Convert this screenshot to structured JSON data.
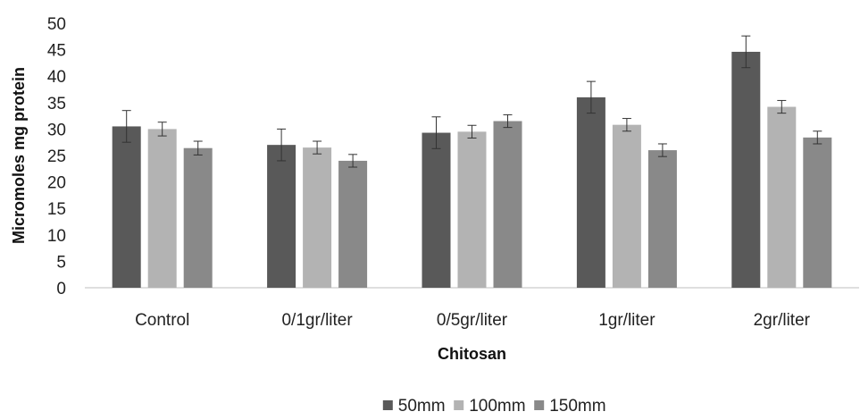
{
  "chart_data": {
    "type": "bar",
    "xlabel": "Chitosan",
    "ylabel": "Micromoles mg protein",
    "ylim": [
      0,
      50
    ],
    "yticks": [
      0,
      5,
      10,
      15,
      20,
      25,
      30,
      35,
      40,
      45,
      50
    ],
    "grid": false,
    "legend_position": "bottom",
    "categories": [
      "Control",
      "0/1gr/liter",
      "0/5gr/liter",
      "1gr/liter",
      "2gr/liter"
    ],
    "series": [
      {
        "name": "50mm",
        "color": "#595959",
        "values": [
          30.5,
          27.0,
          29.3,
          36.0,
          44.6
        ],
        "errors": [
          3.0,
          3.0,
          3.0,
          3.0,
          3.0
        ]
      },
      {
        "name": "100mm",
        "color": "#b3b3b3",
        "values": [
          30.0,
          26.5,
          29.5,
          30.8,
          34.2
        ],
        "errors": [
          1.3,
          1.2,
          1.2,
          1.2,
          1.2
        ]
      },
      {
        "name": "150mm",
        "color": "#898989",
        "values": [
          26.4,
          24.0,
          31.5,
          26.0,
          28.4
        ],
        "errors": [
          1.3,
          1.2,
          1.2,
          1.2,
          1.2
        ]
      }
    ]
  }
}
